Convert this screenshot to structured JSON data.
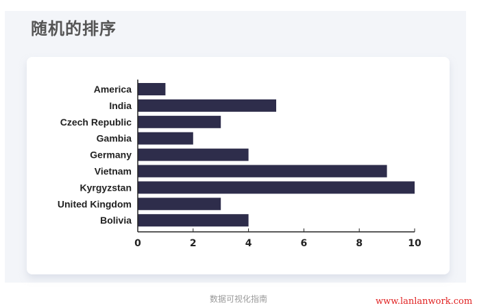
{
  "page_title": "随机的排序",
  "caption": "数据可视化指南",
  "watermark": "www.lanlanwork.com",
  "colors": {
    "bar": "#2e2d4b",
    "panel": "#f3f5f9"
  },
  "chart_data": {
    "type": "bar",
    "orientation": "horizontal",
    "categories": [
      "America",
      "India",
      "Czech Republic",
      "Gambia",
      "Germany",
      "Vietnam",
      "Kyrgyzstan",
      "United Kingdom",
      "Bolivia"
    ],
    "values": [
      1,
      5,
      3,
      2,
      4,
      9,
      10,
      3,
      4
    ],
    "xlim": [
      0,
      10
    ],
    "xticks": [
      "0",
      "2",
      "4",
      "6",
      "8",
      "10"
    ],
    "grid": false
  }
}
